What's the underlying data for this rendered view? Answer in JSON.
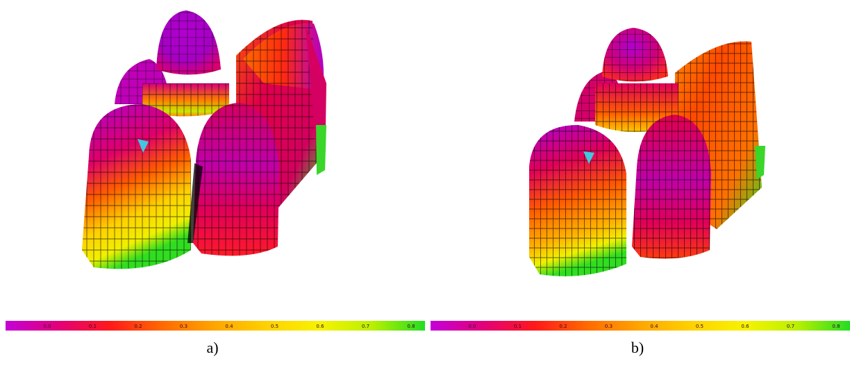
{
  "figures": [
    {
      "caption": "a)",
      "colorbar_ticks": [
        "0.0",
        "0.1",
        "0.2",
        "0.3",
        "0.4",
        "0.5",
        "0.6",
        "0.7",
        "0.8"
      ],
      "colors": {
        "dome": "#a800cc",
        "body": "#e0005a",
        "warm": "#ff4500",
        "mid": "#ff9a00",
        "yellow": "#f7f300",
        "green": "#33e12b",
        "cyan": "#40c8e0"
      }
    },
    {
      "caption": "b)",
      "colorbar_ticks": [
        "0.0",
        "0.1",
        "0.2",
        "0.3",
        "0.4",
        "0.5",
        "0.6",
        "0.7",
        "0.8"
      ],
      "colors": {
        "dome": "#a800cc",
        "body": "#e0005a",
        "warm": "#ff4500",
        "mid": "#ff9a00",
        "yellow": "#f7f300",
        "green": "#33e12b",
        "cyan": "#40c8e0"
      }
    }
  ],
  "colorbar_gradient": [
    "#c400d8",
    "#e2007a",
    "#ff1a1a",
    "#ff6a00",
    "#ffa600",
    "#ffd200",
    "#f7f300",
    "#b9f000",
    "#22dd22"
  ]
}
